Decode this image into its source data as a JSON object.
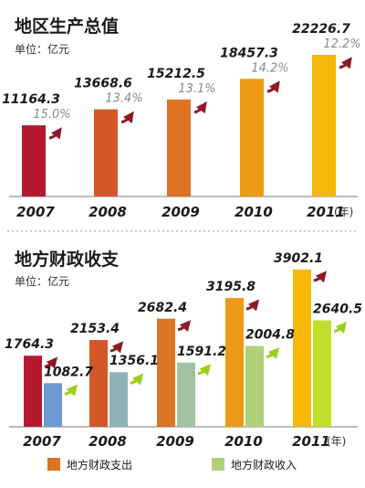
{
  "chart_data": [
    {
      "type": "bar",
      "title": "地区生产总值",
      "unit_label": "单位：亿元",
      "x_unit": "(年)",
      "categories": [
        "2007",
        "2008",
        "2009",
        "2010",
        "2011"
      ],
      "values": [
        11164.3,
        13668.6,
        15212.5,
        18457.3,
        22226.7
      ],
      "value_labels": [
        "11164.3",
        "13668.6",
        "15212.5",
        "18457.3",
        "22226.7"
      ],
      "growth_labels": [
        "15.0%",
        "13.4%",
        "13.1%",
        "14.2%",
        "12.2%"
      ],
      "growth": [
        15.0,
        13.4,
        13.1,
        14.2,
        12.2
      ],
      "colors": [
        "#b5192d",
        "#d4572a",
        "#dc7424",
        "#ee9a14",
        "#f3b80a"
      ]
    },
    {
      "type": "bar",
      "title": "地方财政收支",
      "unit_label": "单位：亿元",
      "x_unit": "(年)",
      "categories": [
        "2007",
        "2008",
        "2009",
        "2010",
        "2011"
      ],
      "series": [
        {
          "name": "地方财政支出",
          "values": [
            1764.3,
            2153.4,
            2682.4,
            3195.8,
            3902.1
          ],
          "value_labels": [
            "1764.3",
            "2153.4",
            "2682.4",
            "3195.8",
            "3902.1"
          ],
          "colors": [
            "#b5192d",
            "#d4572a",
            "#dc7424",
            "#ee9a14",
            "#f3b80a"
          ]
        },
        {
          "name": "地方财政收入",
          "values": [
            1082.7,
            1356.1,
            1591.2,
            2004.8,
            2640.5
          ],
          "value_labels": [
            "1082.7",
            "1356.1",
            "1591.2",
            "2004.8",
            "2640.5"
          ],
          "colors": [
            "#6b9bd2",
            "#8fb3b9",
            "#9fc3a3",
            "#b1d07a",
            "#c3dd2c"
          ]
        }
      ],
      "legend": "bottom"
    }
  ]
}
